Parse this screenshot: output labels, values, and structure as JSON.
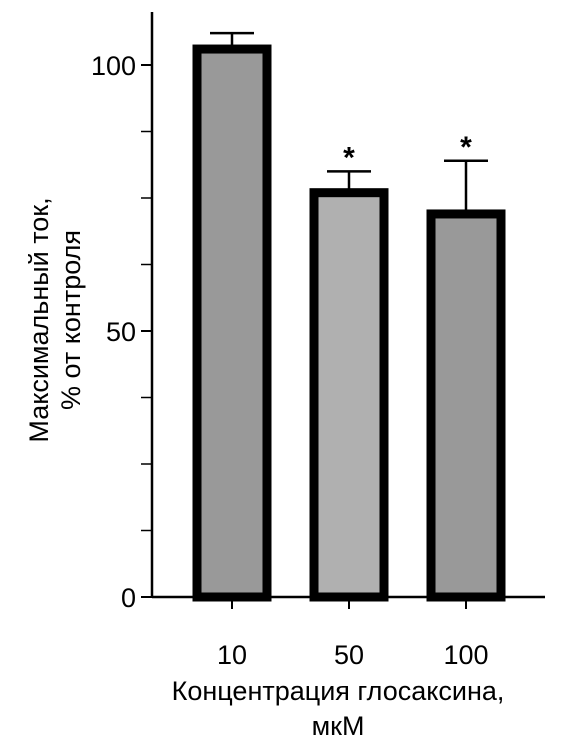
{
  "chart_data": {
    "type": "bar",
    "categories": [
      "10",
      "50",
      "100"
    ],
    "values": [
      103,
      76,
      72
    ],
    "errors": [
      3,
      4,
      10
    ],
    "significance": [
      "",
      "*",
      "*"
    ],
    "bar_colors": [
      "#999999",
      "#b0b0b0",
      "#999999"
    ],
    "xlabel_line1": "Концентрация глосаксина,",
    "xlabel_line2": "мкМ",
    "ylabel_line1": "Максимальный ток,",
    "ylabel_line2": "% от контроля",
    "ylim": [
      0,
      110
    ],
    "yticks_labeled": [
      "0",
      "50",
      "100"
    ],
    "ytick_values": [
      0,
      50,
      100
    ],
    "yticks_minor": [
      12.5,
      25,
      37.5,
      62.5,
      75,
      87.5
    ],
    "grid": false
  }
}
